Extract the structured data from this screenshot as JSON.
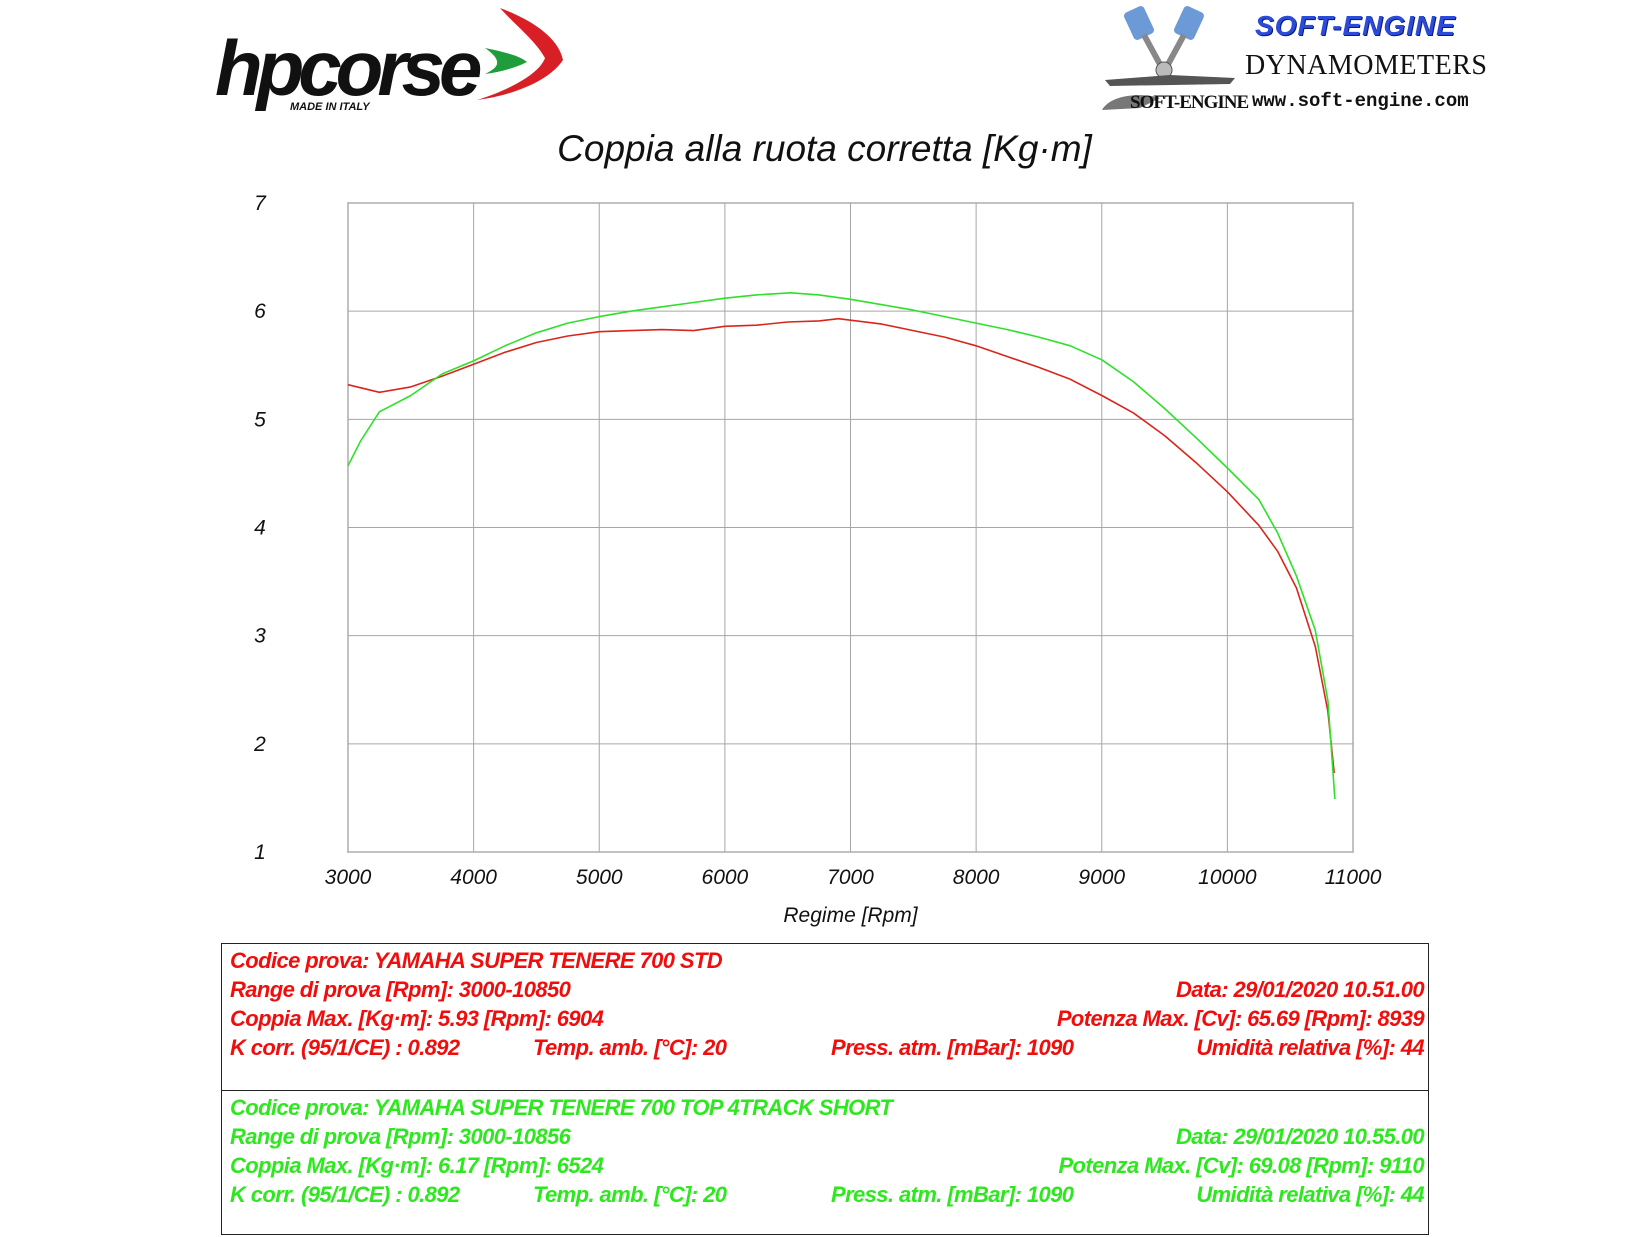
{
  "logos": {
    "left_brand": "hpcorse",
    "left_tag": "MADE IN ITALY",
    "right_brand": "SOFT-ENGINE",
    "right_sub": "DYNAMOMETERS",
    "right_url": "www.soft-engine.com",
    "right_small": "SOFT-ENGINE"
  },
  "colors": {
    "series_red": "#d9261c",
    "series_green": "#2fe02a",
    "grid": "#a6a6a6"
  },
  "chart_data": {
    "type": "line",
    "title": "Coppia alla ruota corretta [Kg·m]",
    "xlabel": "Regime [Rpm]",
    "ylabel": "",
    "xlim": [
      3000,
      11000
    ],
    "ylim": [
      1,
      7
    ],
    "xticks": [
      "3000",
      "4000",
      "5000",
      "6000",
      "7000",
      "8000",
      "9000",
      "10000",
      "11000"
    ],
    "yticks": [
      "1",
      "2",
      "3",
      "4",
      "5",
      "6",
      "7"
    ],
    "grid": true,
    "legend": "none",
    "series": [
      {
        "color": "red",
        "x": [
          3000,
          3250,
          3500,
          3750,
          4000,
          4250,
          4500,
          4750,
          5000,
          5250,
          5500,
          5750,
          6000,
          6250,
          6500,
          6750,
          6904,
          7250,
          7500,
          7750,
          8000,
          8250,
          8500,
          8750,
          9000,
          9250,
          9500,
          9750,
          10000,
          10250,
          10400,
          10550,
          10700,
          10800,
          10850
        ],
        "y": [
          5.32,
          5.25,
          5.3,
          5.4,
          5.51,
          5.62,
          5.71,
          5.77,
          5.81,
          5.82,
          5.83,
          5.82,
          5.86,
          5.87,
          5.9,
          5.91,
          5.93,
          5.88,
          5.82,
          5.76,
          5.68,
          5.58,
          5.48,
          5.37,
          5.22,
          5.06,
          4.85,
          4.6,
          4.33,
          4.02,
          3.78,
          3.44,
          2.9,
          2.3,
          1.73
        ]
      },
      {
        "color": "green",
        "x": [
          3000,
          3100,
          3250,
          3500,
          3750,
          4000,
          4250,
          4500,
          4750,
          5000,
          5250,
          5500,
          5750,
          6000,
          6250,
          6524,
          6750,
          7000,
          7250,
          7500,
          7750,
          8000,
          8250,
          8500,
          8750,
          9000,
          9250,
          9500,
          9750,
          10000,
          10250,
          10400,
          10550,
          10700,
          10800,
          10856
        ],
        "y": [
          4.57,
          4.8,
          5.07,
          5.22,
          5.42,
          5.54,
          5.68,
          5.8,
          5.89,
          5.95,
          6.0,
          6.04,
          6.08,
          6.12,
          6.15,
          6.17,
          6.15,
          6.11,
          6.06,
          6.01,
          5.95,
          5.89,
          5.83,
          5.76,
          5.68,
          5.55,
          5.35,
          5.1,
          4.83,
          4.55,
          4.26,
          3.95,
          3.55,
          3.05,
          2.4,
          1.49
        ]
      }
    ]
  },
  "info": {
    "red": {
      "codice": "Codice prova: YAMAHA SUPER TENERE 700 STD",
      "range": "Range di prova [Rpm]: 3000-10850",
      "data": "Data: 29/01/2020   10.51.00",
      "coppia": "Coppia Max. [Kg·m]: 5.93   [Rpm]: 6904",
      "potenza": "Potenza Max. [Cv]: 65.69   [Rpm]: 8939",
      "kcorr": "K corr. (95/1/CE) : 0.892",
      "temp": "Temp. amb. [°C]: 20",
      "press": "Press. atm. [mBar]: 1090",
      "umid": "Umidità relativa [%]: 44"
    },
    "green": {
      "codice": "Codice prova: YAMAHA SUPER TENERE 700 TOP 4TRACK SHORT",
      "range": "Range di prova [Rpm]: 3000-10856",
      "data": "Data: 29/01/2020   10.55.00",
      "coppia": "Coppia Max. [Kg·m]: 6.17   [Rpm]: 6524",
      "potenza": "Potenza Max. [Cv]: 69.08   [Rpm]: 9110",
      "kcorr": "K corr. (95/1/CE) : 0.892",
      "temp": "Temp. amb. [°C]: 20",
      "press": "Press. atm. [mBar]: 1090",
      "umid": "Umidità relativa [%]: 44"
    }
  }
}
